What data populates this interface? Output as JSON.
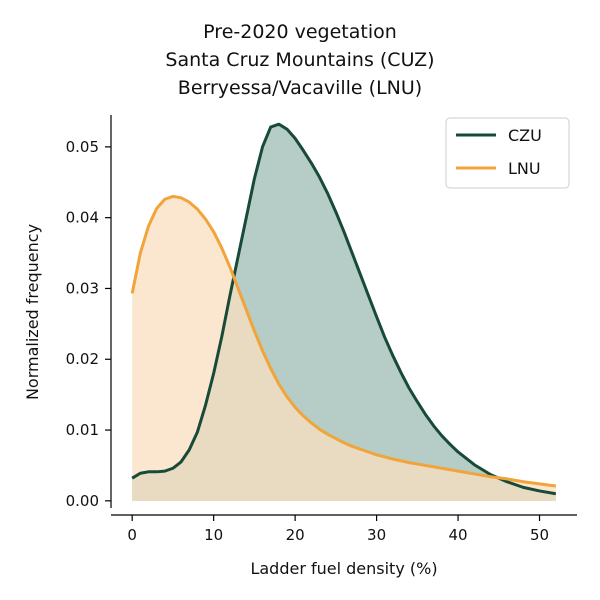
{
  "chart_data": {
    "type": "area",
    "title_lines": [
      "Pre-2020 vegetation",
      "Santa Cruz Mountains (CUZ)",
      "Berryessa/Vacaville (LNU)"
    ],
    "xlabel": "Ladder fuel density (%)",
    "ylabel": "Normalized frequency",
    "xlim": [
      -2.6,
      54.6
    ],
    "ylim": [
      -0.002,
      0.0545
    ],
    "xticks": [
      "0",
      "10",
      "20",
      "30",
      "40",
      "50"
    ],
    "yticks": [
      "0.00",
      "0.01",
      "0.02",
      "0.03",
      "0.04",
      "0.05"
    ],
    "legend": {
      "placement": "top-right"
    },
    "series": [
      {
        "name": "CZU",
        "color": "#174a37",
        "fill": "#b6ccc7",
        "x": [
          0,
          1,
          2,
          3,
          4,
          5,
          6,
          7,
          8,
          9,
          10,
          11,
          12,
          13,
          14,
          15,
          16,
          17,
          18,
          19,
          20,
          21,
          22,
          23,
          24,
          25,
          26,
          27,
          28,
          29,
          30,
          31,
          32,
          33,
          34,
          35,
          36,
          37,
          38,
          39,
          40,
          42,
          44,
          46,
          48,
          50,
          52
        ],
        "y": [
          0.0032,
          0.0039,
          0.0041,
          0.0041,
          0.0042,
          0.0046,
          0.0055,
          0.0072,
          0.0097,
          0.0135,
          0.018,
          0.0232,
          0.029,
          0.0345,
          0.04,
          0.0455,
          0.05,
          0.0528,
          0.0532,
          0.0525,
          0.0512,
          0.0495,
          0.0477,
          0.0457,
          0.0434,
          0.0408,
          0.038,
          0.035,
          0.032,
          0.029,
          0.026,
          0.0231,
          0.0205,
          0.0181,
          0.0159,
          0.014,
          0.0122,
          0.0106,
          0.0092,
          0.008,
          0.0069,
          0.0051,
          0.0037,
          0.0027,
          0.0019,
          0.0014,
          0.001
        ]
      },
      {
        "name": "LNU",
        "color": "#f0a43a",
        "fill": "#f9dfc0",
        "x": [
          0,
          1,
          2,
          3,
          4,
          5,
          6,
          7,
          8,
          9,
          10,
          11,
          12,
          13,
          14,
          15,
          16,
          17,
          18,
          19,
          20,
          21,
          22,
          23,
          24,
          25,
          26,
          27,
          28,
          29,
          30,
          32,
          34,
          36,
          38,
          40,
          42,
          44,
          46,
          48,
          50,
          52
        ],
        "y": [
          0.0293,
          0.035,
          0.0388,
          0.0413,
          0.0426,
          0.043,
          0.0428,
          0.0422,
          0.0412,
          0.0398,
          0.038,
          0.0357,
          0.033,
          0.03,
          0.027,
          0.024,
          0.0212,
          0.0187,
          0.0165,
          0.0147,
          0.0132,
          0.012,
          0.011,
          0.0101,
          0.0094,
          0.0088,
          0.0082,
          0.0077,
          0.0073,
          0.0069,
          0.0065,
          0.0059,
          0.0054,
          0.005,
          0.0046,
          0.0042,
          0.0038,
          0.0034,
          0.0031,
          0.0027,
          0.0024,
          0.0021
        ]
      }
    ]
  }
}
